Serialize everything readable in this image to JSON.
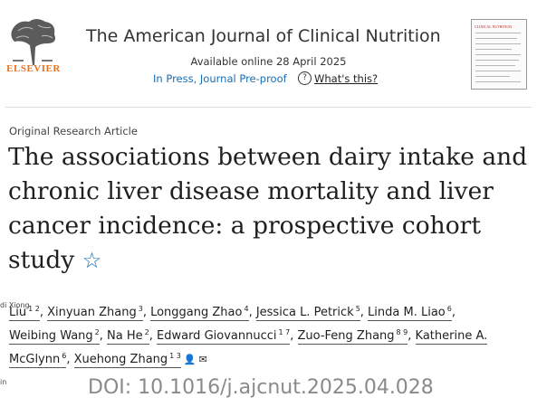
{
  "header": {
    "publisher": "ELSEVIER",
    "journal_title": "The American Journal of Clinical Nutrition",
    "available_online": "Available online 28 April 2025",
    "status": "In Press, Journal Pre-proof",
    "whats_this": "What's this?",
    "cover_title": "CLINICAL NUTRITION"
  },
  "article": {
    "type": "Original Research Article",
    "title": "The associations between dairy intake and chronic liver disease mortality and liver cancer incidence: a prospective cohort study"
  },
  "authors": [
    {
      "name": "Liu",
      "sup": "1 2"
    },
    {
      "name": "Xinyuan Zhang",
      "sup": "3"
    },
    {
      "name": "Longgang Zhao",
      "sup": "4"
    },
    {
      "name": "Jessica L. Petrick",
      "sup": "5"
    },
    {
      "name": "Linda M. Liao",
      "sup": "6"
    },
    {
      "name": "Weibing Wang",
      "sup": "2"
    },
    {
      "name": "Na He",
      "sup": "2"
    },
    {
      "name": "Edward Giovannucci",
      "sup": "1 7"
    },
    {
      "name": "Zuo-Feng Zhang",
      "sup": "8 9"
    },
    {
      "name": "Katherine A. McGlynn",
      "sup": "6"
    },
    {
      "name": "Xuehong Zhang",
      "sup": "1 3"
    }
  ],
  "overlay": {
    "left_top": "di Xiong",
    "left_bottom": "in"
  },
  "doi": "DOI: 10.1016/j.ajcnut.2025.04.028",
  "icons": [
    "elsevier-tree-logo",
    "journal-cover",
    "question-icon",
    "star-icon",
    "person-icon",
    "envelope-icon"
  ],
  "colors": {
    "publisher": "#e9711c",
    "link": "#1a6fb5",
    "doi": "#8a8a8a"
  }
}
